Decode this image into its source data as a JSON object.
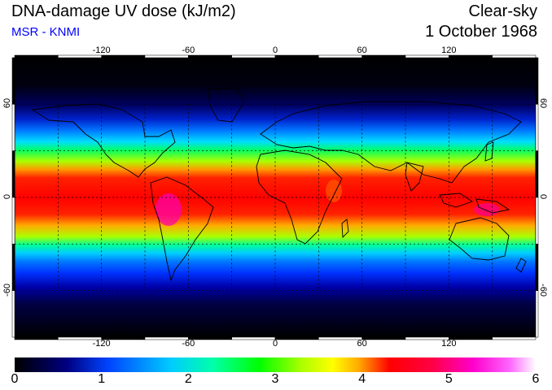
{
  "header": {
    "title": "DNA-damage UV dose (kJ/m2)",
    "subtitle": "MSR - KNMI",
    "mode": "Clear-sky",
    "date": "1 October 1968"
  },
  "map": {
    "lon_ticks": [
      "-120",
      "-60",
      "0",
      "60",
      "120"
    ],
    "lat_ticks": [
      "60",
      "0",
      "-60"
    ],
    "lon_range": [
      -180,
      180
    ],
    "lat_range": [
      -90,
      90
    ],
    "grid_lons": [
      -150,
      -120,
      -90,
      -60,
      -30,
      0,
      30,
      60,
      90,
      120,
      150
    ],
    "grid_lats": [
      -60,
      -30,
      0,
      30,
      60
    ]
  },
  "colorbar": {
    "labels": [
      "0",
      "1",
      "2",
      "3",
      "4",
      "5",
      "6"
    ],
    "min": 0,
    "max": 6,
    "colors": [
      "#000000",
      "#0000aa",
      "#0066ff",
      "#00ffff",
      "#00ff00",
      "#ffff00",
      "#ff8800",
      "#ff0000",
      "#ff0088",
      "#ff00ff",
      "#ffffff"
    ]
  }
}
